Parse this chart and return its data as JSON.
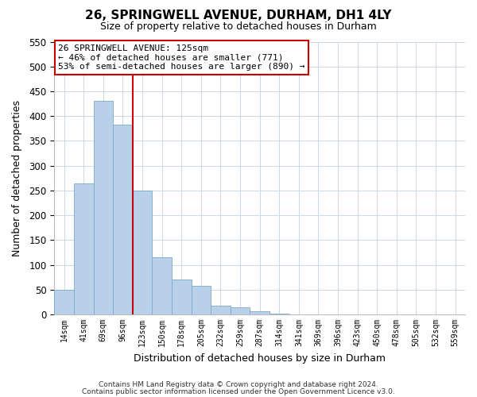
{
  "title": "26, SPRINGWELL AVENUE, DURHAM, DH1 4LY",
  "subtitle": "Size of property relative to detached houses in Durham",
  "xlabel": "Distribution of detached houses by size in Durham",
  "ylabel": "Number of detached properties",
  "bar_labels": [
    "14sqm",
    "41sqm",
    "69sqm",
    "96sqm",
    "123sqm",
    "150sqm",
    "178sqm",
    "205sqm",
    "232sqm",
    "259sqm",
    "287sqm",
    "314sqm",
    "341sqm",
    "369sqm",
    "396sqm",
    "423sqm",
    "450sqm",
    "478sqm",
    "505sqm",
    "532sqm",
    "559sqm"
  ],
  "bar_values": [
    50,
    265,
    430,
    383,
    250,
    116,
    70,
    58,
    18,
    15,
    6,
    1,
    0,
    0,
    0,
    0,
    0,
    0,
    0,
    0,
    0
  ],
  "bar_color": "#b8d0e8",
  "bar_edge_color": "#7aaac8",
  "vline_color": "#cc0000",
  "vline_bar_index": 4,
  "ylim": [
    0,
    550
  ],
  "yticks": [
    0,
    50,
    100,
    150,
    200,
    250,
    300,
    350,
    400,
    450,
    500,
    550
  ],
  "annotation_title": "26 SPRINGWELL AVENUE: 125sqm",
  "annotation_line1": "← 46% of detached houses are smaller (771)",
  "annotation_line2": "53% of semi-detached houses are larger (890) →",
  "annotation_box_color": "#ffffff",
  "annotation_box_edge": "#cc0000",
  "footer_line1": "Contains HM Land Registry data © Crown copyright and database right 2024.",
  "footer_line2": "Contains public sector information licensed under the Open Government Licence v3.0.",
  "background_color": "#ffffff",
  "grid_color": "#ccd8e8"
}
